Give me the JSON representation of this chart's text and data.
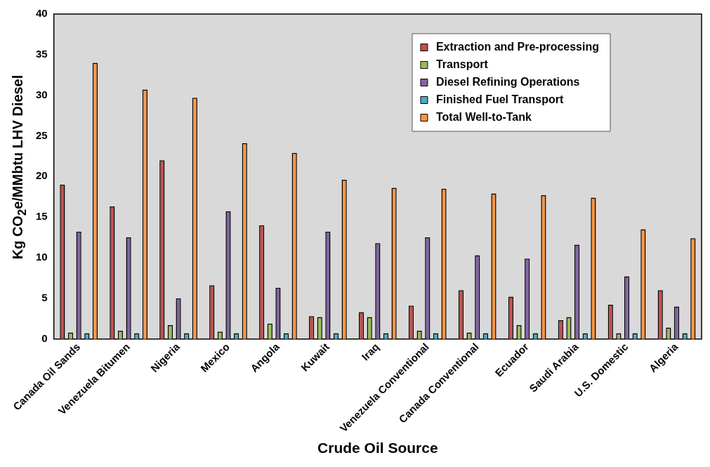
{
  "chart_data": {
    "type": "bar",
    "xlabel": "Crude Oil Source",
    "ylabel": "Kg CO$_{2}$e/MMbtu LHV Diesel",
    "categories": [
      "Canada Oil Sands",
      "Venezuela Bitumen",
      "Nigeria",
      "Mexico",
      "Angola",
      "Kuwait",
      "Iraq",
      "Venezuela Conventional",
      "Canada Conventional",
      "Ecuador",
      "Saudi Arabia",
      "U.S. Domestic",
      "Algeria"
    ],
    "series": [
      {
        "name": "Extraction and Pre-processing",
        "color": "#c0504d",
        "values": [
          19.0,
          16.3,
          22.0,
          6.6,
          14.0,
          2.8,
          3.3,
          4.1,
          6.0,
          5.2,
          2.3,
          4.2,
          6.0
        ]
      },
      {
        "name": "Transport",
        "color": "#9bbb59",
        "values": [
          0.8,
          1.0,
          1.7,
          0.9,
          1.9,
          2.7,
          2.7,
          1.0,
          0.8,
          1.7,
          2.7,
          0.7,
          1.4
        ]
      },
      {
        "name": "Diesel Refining Operations",
        "color": "#8064a2",
        "values": [
          13.2,
          12.5,
          5.0,
          15.7,
          6.3,
          13.2,
          11.8,
          12.5,
          10.3,
          9.9,
          11.6,
          7.7,
          4.0
        ]
      },
      {
        "name": "Finished Fuel Transport",
        "color": "#4bacc6",
        "values": [
          0.7,
          0.7,
          0.7,
          0.7,
          0.7,
          0.7,
          0.7,
          0.7,
          0.7,
          0.7,
          0.7,
          0.7,
          0.7
        ]
      },
      {
        "name": "Total Well-to-Tank",
        "color": "#f79646",
        "values": [
          34.0,
          30.7,
          29.7,
          24.1,
          22.9,
          19.6,
          18.6,
          18.5,
          17.9,
          17.7,
          17.4,
          13.5,
          12.4
        ]
      }
    ],
    "ylim": [
      0,
      40
    ],
    "yticks": [
      0,
      5,
      10,
      15,
      20,
      25,
      30,
      35,
      40
    ],
    "grid": false,
    "legend": "top right"
  }
}
